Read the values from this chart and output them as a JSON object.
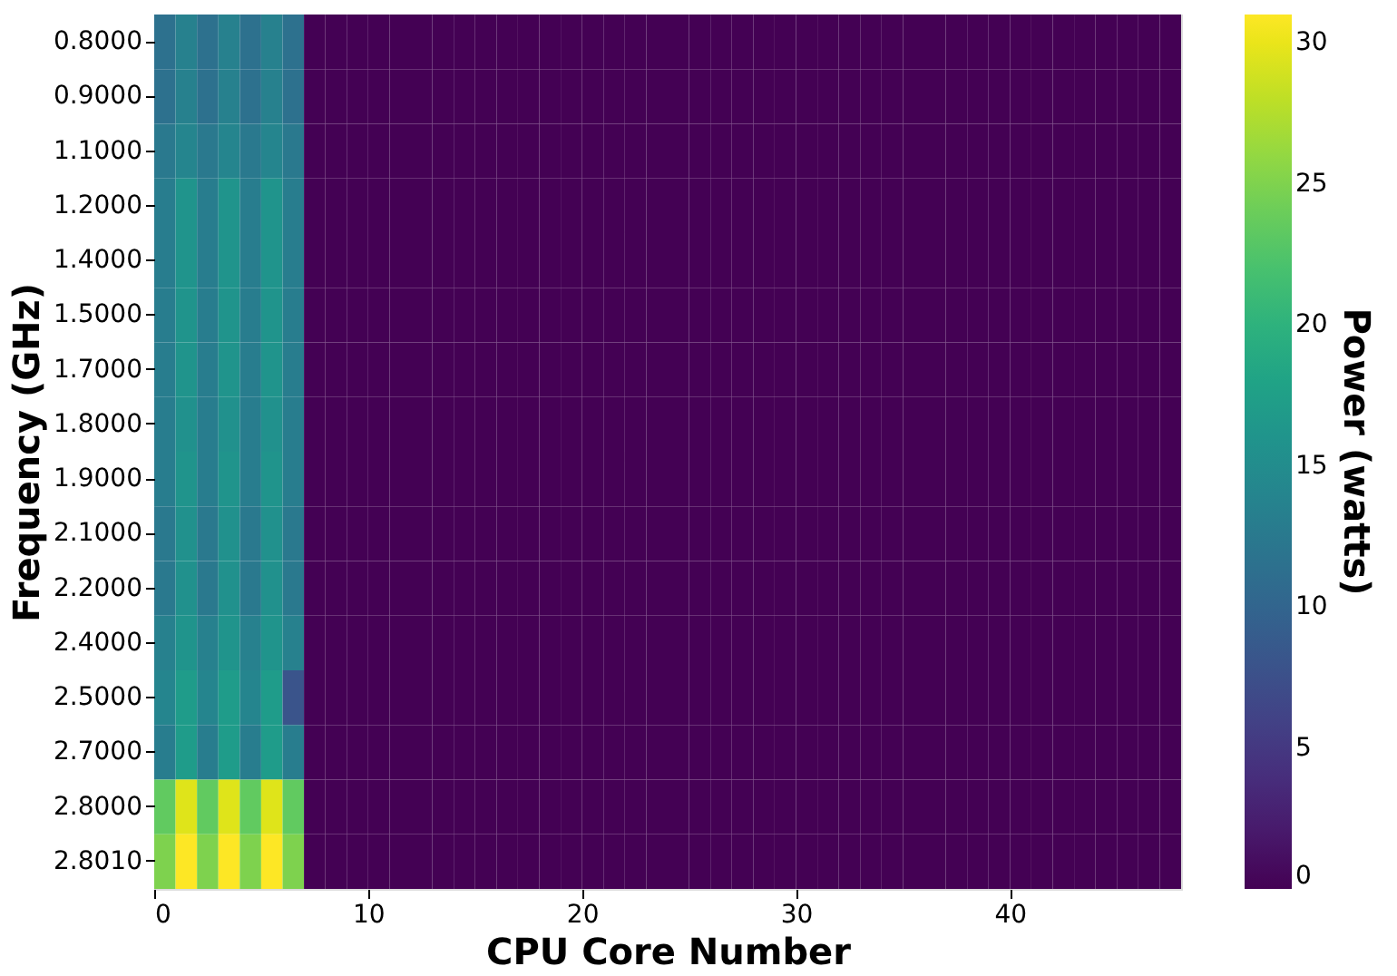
{
  "chart_data": {
    "type": "heatmap",
    "xlabel": "CPU Core Number",
    "ylabel": "Frequency (GHz)",
    "clabel": "Power (watts)",
    "x": [
      0,
      1,
      2,
      3,
      4,
      5,
      6,
      7,
      8,
      9,
      10,
      11,
      12,
      13,
      14,
      15,
      16,
      17,
      18,
      19,
      20,
      21,
      22,
      23,
      24,
      25,
      26,
      27,
      28,
      29,
      30,
      31,
      32,
      33,
      34,
      35,
      36,
      37,
      38,
      39,
      40,
      41,
      42,
      43,
      44,
      45,
      46,
      47
    ],
    "xlim": [
      0,
      48
    ],
    "xticks": [
      0,
      10,
      20,
      30,
      40
    ],
    "y_categories": [
      "0.8000",
      "0.9000",
      "1.1000",
      "1.2000",
      "1.4000",
      "1.5000",
      "1.7000",
      "1.8000",
      "1.9000",
      "2.1000",
      "2.2000",
      "2.4000",
      "2.5000",
      "2.7000",
      "2.8000",
      "2.8010"
    ],
    "cells": [
      [
        11.5,
        13.5,
        11.5,
        13.5,
        11.5,
        13.5,
        11.5,
        0,
        0,
        0,
        0,
        0,
        0,
        0,
        0,
        0,
        0,
        0,
        0,
        0,
        0,
        0,
        0,
        0,
        0,
        0,
        0,
        0,
        0,
        0,
        0,
        0,
        0,
        0,
        0,
        0,
        0,
        0,
        0,
        0,
        0,
        0,
        0,
        0,
        0,
        0,
        0,
        0
      ],
      [
        11.5,
        13.5,
        11.5,
        13.5,
        11.5,
        13.5,
        11.5,
        0,
        0,
        0,
        0,
        0,
        0,
        0,
        0,
        0,
        0,
        0,
        0,
        0,
        0,
        0,
        0,
        0,
        0,
        0,
        0,
        0,
        0,
        0,
        0,
        0,
        0,
        0,
        0,
        0,
        0,
        0,
        0,
        0,
        0,
        0,
        0,
        0,
        0,
        0,
        0,
        0
      ],
      [
        12.5,
        14,
        12.5,
        14,
        12.5,
        14,
        12.5,
        0,
        0,
        0,
        0,
        0,
        0,
        0,
        0,
        0,
        0,
        0,
        0,
        0,
        0,
        0,
        0,
        0,
        0,
        0,
        0,
        0,
        0,
        0,
        0,
        0,
        0,
        0,
        0,
        0,
        0,
        0,
        0,
        0,
        0,
        0,
        0,
        0,
        0,
        0,
        0,
        0
      ],
      [
        13,
        16,
        13,
        16,
        13,
        16,
        13,
        0,
        0,
        0,
        0,
        0,
        0,
        0,
        0,
        0,
        0,
        0,
        0,
        0,
        0,
        0,
        0,
        0,
        0,
        0,
        0,
        0,
        0,
        0,
        0,
        0,
        0,
        0,
        0,
        0,
        0,
        0,
        0,
        0,
        0,
        0,
        0,
        0,
        0,
        0,
        0,
        0
      ],
      [
        13,
        16,
        13,
        16,
        13,
        16,
        13,
        0,
        0,
        0,
        0,
        0,
        0,
        0,
        0,
        0,
        0,
        0,
        0,
        0,
        0,
        0,
        0,
        0,
        0,
        0,
        0,
        0,
        0,
        0,
        0,
        0,
        0,
        0,
        0,
        0,
        0,
        0,
        0,
        0,
        0,
        0,
        0,
        0,
        0,
        0,
        0,
        0
      ],
      [
        13,
        16,
        13,
        16,
        13,
        16,
        13,
        0,
        0,
        0,
        0,
        0,
        0,
        0,
        0,
        0,
        0,
        0,
        0,
        0,
        0,
        0,
        0,
        0,
        0,
        0,
        0,
        0,
        0,
        0,
        0,
        0,
        0,
        0,
        0,
        0,
        0,
        0,
        0,
        0,
        0,
        0,
        0,
        0,
        0,
        0,
        0,
        0
      ],
      [
        13,
        16,
        13,
        16,
        13,
        16,
        13,
        0,
        0,
        0,
        0,
        0,
        0,
        0,
        0,
        0,
        0,
        0,
        0,
        0,
        0,
        0,
        0,
        0,
        0,
        0,
        0,
        0,
        0,
        0,
        0,
        0,
        0,
        0,
        0,
        0,
        0,
        0,
        0,
        0,
        0,
        0,
        0,
        0,
        0,
        0,
        0,
        0
      ],
      [
        13,
        15.5,
        13,
        15.5,
        13,
        15.5,
        13,
        0,
        0,
        0,
        0,
        0,
        0,
        0,
        0,
        0,
        0,
        0,
        0,
        0,
        0,
        0,
        0,
        0,
        0,
        0,
        0,
        0,
        0,
        0,
        0,
        0,
        0,
        0,
        0,
        0,
        0,
        0,
        0,
        0,
        0,
        0,
        0,
        0,
        0,
        0,
        0,
        0
      ],
      [
        13,
        16,
        13,
        16,
        13,
        16,
        13,
        0,
        0,
        0,
        0,
        0,
        0,
        0,
        0,
        0,
        0,
        0,
        0,
        0,
        0,
        0,
        0,
        0,
        0,
        0,
        0,
        0,
        0,
        0,
        0,
        0,
        0,
        0,
        0,
        0,
        0,
        0,
        0,
        0,
        0,
        0,
        0,
        0,
        0,
        0,
        0,
        0
      ],
      [
        12.5,
        15.5,
        12.5,
        15.5,
        12.5,
        15.5,
        12.5,
        0,
        0,
        0,
        0,
        0,
        0,
        0,
        0,
        0,
        0,
        0,
        0,
        0,
        0,
        0,
        0,
        0,
        0,
        0,
        0,
        0,
        0,
        0,
        0,
        0,
        0,
        0,
        0,
        0,
        0,
        0,
        0,
        0,
        0,
        0,
        0,
        0,
        0,
        0,
        0,
        0
      ],
      [
        12.5,
        15.5,
        12.5,
        15.5,
        12.5,
        15.5,
        12.5,
        0,
        0,
        0,
        0,
        0,
        0,
        0,
        0,
        0,
        0,
        0,
        0,
        0,
        0,
        0,
        0,
        0,
        0,
        0,
        0,
        0,
        0,
        0,
        0,
        0,
        0,
        0,
        0,
        0,
        0,
        0,
        0,
        0,
        0,
        0,
        0,
        0,
        0,
        0,
        0,
        0
      ],
      [
        13.5,
        16,
        13.5,
        16,
        13.5,
        16,
        13.5,
        0,
        0,
        0,
        0,
        0,
        0,
        0,
        0,
        0,
        0,
        0,
        0,
        0,
        0,
        0,
        0,
        0,
        0,
        0,
        0,
        0,
        0,
        0,
        0,
        0,
        0,
        0,
        0,
        0,
        0,
        0,
        0,
        0,
        0,
        0,
        0,
        0,
        0,
        0,
        0,
        0
      ],
      [
        14,
        17,
        14,
        17,
        14,
        17,
        8,
        0,
        0,
        0,
        0,
        0,
        0,
        0,
        0,
        0,
        0,
        0,
        0,
        0,
        0,
        0,
        0,
        0,
        0,
        0,
        0,
        0,
        0,
        0,
        0,
        0,
        0,
        0,
        0,
        0,
        0,
        0,
        0,
        0,
        0,
        0,
        0,
        0,
        0,
        0,
        0,
        0
      ],
      [
        13,
        17,
        13,
        17,
        13,
        17,
        13,
        0,
        0,
        0,
        0,
        0,
        0,
        0,
        0,
        0,
        0,
        0,
        0,
        0,
        0,
        0,
        0,
        0,
        0,
        0,
        0,
        0,
        0,
        0,
        0,
        0,
        0,
        0,
        0,
        0,
        0,
        0,
        0,
        0,
        0,
        0,
        0,
        0,
        0,
        0,
        0,
        0
      ],
      [
        23.5,
        29.5,
        23.5,
        29.5,
        23.5,
        29.5,
        23.5,
        0,
        0,
        0,
        0,
        0,
        0,
        0,
        0,
        0,
        0,
        0,
        0,
        0,
        0,
        0,
        0,
        0,
        0,
        0,
        0,
        0,
        0,
        0,
        0,
        0,
        0,
        0,
        0,
        0,
        0,
        0,
        0,
        0,
        0,
        0,
        0,
        0,
        0,
        0,
        0,
        0
      ],
      [
        25,
        31,
        25,
        31,
        25,
        31,
        25,
        0,
        0,
        0,
        0,
        0,
        0,
        0,
        0,
        0,
        0,
        0,
        0,
        0,
        0,
        0,
        0,
        0,
        0,
        0,
        0,
        0,
        0,
        0,
        0,
        0,
        0,
        0,
        0,
        0,
        0,
        0,
        0,
        0,
        0,
        0,
        0,
        0,
        0,
        0,
        0,
        0
      ]
    ],
    "clim": [
      0,
      31
    ],
    "cticks": [
      0,
      5,
      10,
      15,
      20,
      25,
      30
    ]
  }
}
